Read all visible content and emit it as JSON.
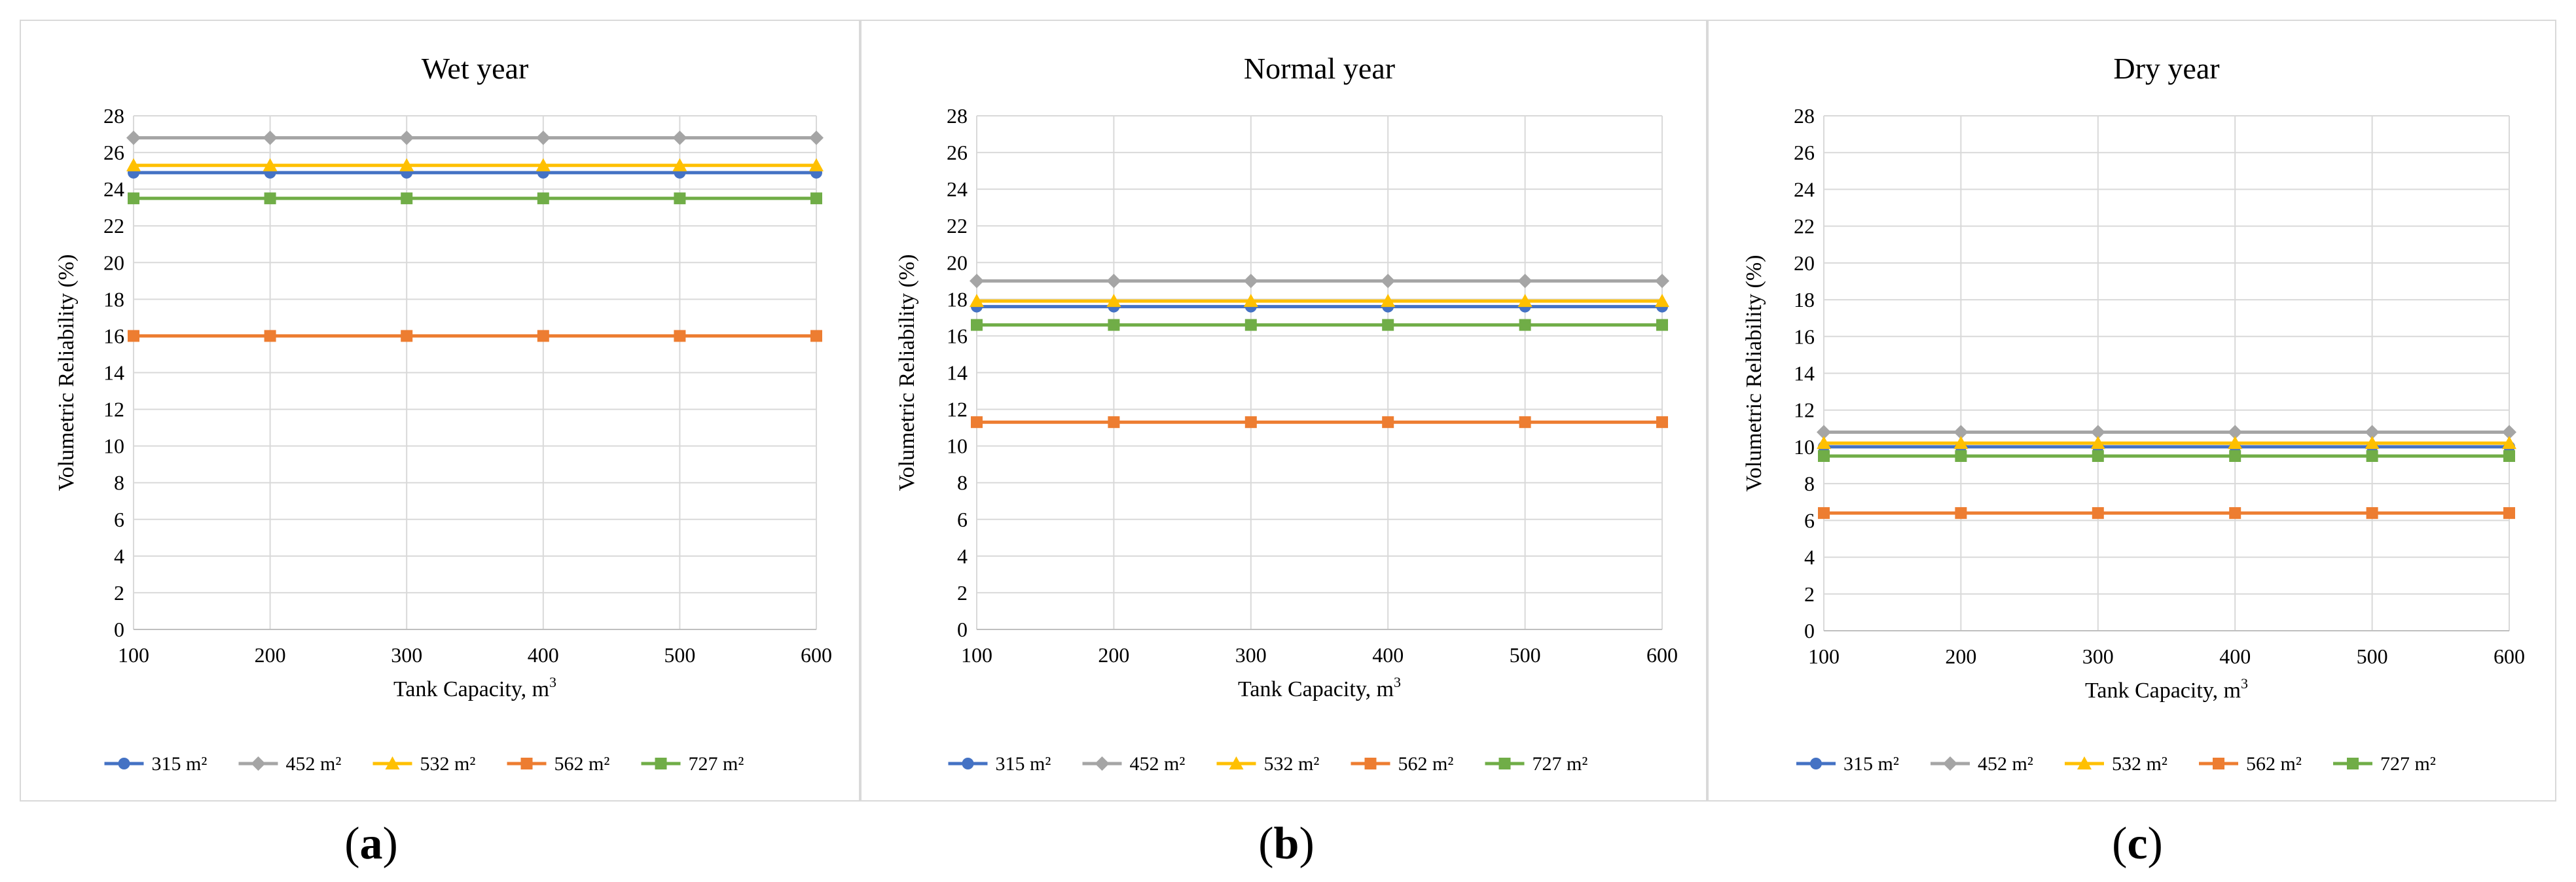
{
  "chart_data": [
    {
      "type": "line",
      "title": "Wet year",
      "xlabel": "Tank Capacity, m",
      "xlabel_sup": "3",
      "ylabel": "Volumetric  Reliability  (%)",
      "x": [
        100,
        200,
        300,
        400,
        500,
        600
      ],
      "ylim": [
        0,
        28
      ],
      "yticks": [
        0,
        2,
        4,
        6,
        8,
        10,
        12,
        14,
        16,
        18,
        20,
        22,
        24,
        26,
        28
      ],
      "grid": true,
      "legend": "bottom",
      "series": [
        {
          "name": "315 m²",
          "color": "#4472c4",
          "marker": "circle",
          "values": [
            24.9,
            24.9,
            24.9,
            24.9,
            24.9,
            24.9
          ]
        },
        {
          "name": "452 m²",
          "color": "#a5a5a5",
          "marker": "diamond",
          "values": [
            26.8,
            26.8,
            26.8,
            26.8,
            26.8,
            26.8
          ]
        },
        {
          "name": "532 m²",
          "color": "#ffc000",
          "marker": "triangle",
          "values": [
            25.3,
            25.3,
            25.3,
            25.3,
            25.3,
            25.3
          ]
        },
        {
          "name": "562 m²",
          "color": "#ed7d31",
          "marker": "square",
          "values": [
            16.0,
            16.0,
            16.0,
            16.0,
            16.0,
            16.0
          ]
        },
        {
          "name": "727 m²",
          "color": "#70ad47",
          "marker": "square",
          "values": [
            23.5,
            23.5,
            23.5,
            23.5,
            23.5,
            23.5
          ]
        }
      ]
    },
    {
      "type": "line",
      "title": "Normal year",
      "xlabel": "Tank Capacity, m",
      "xlabel_sup": "3",
      "ylabel": "Volumetric  Reliability  (%)",
      "x": [
        100,
        200,
        300,
        400,
        500,
        600
      ],
      "ylim": [
        0,
        28
      ],
      "yticks": [
        0,
        2,
        4,
        6,
        8,
        10,
        12,
        14,
        16,
        18,
        20,
        22,
        24,
        26,
        28
      ],
      "grid": true,
      "legend": "bottom",
      "series": [
        {
          "name": "315 m²",
          "color": "#4472c4",
          "marker": "circle",
          "values": [
            17.6,
            17.6,
            17.6,
            17.6,
            17.6,
            17.6
          ]
        },
        {
          "name": "452 m²",
          "color": "#a5a5a5",
          "marker": "diamond",
          "values": [
            19.0,
            19.0,
            19.0,
            19.0,
            19.0,
            19.0
          ]
        },
        {
          "name": "532 m²",
          "color": "#ffc000",
          "marker": "triangle",
          "values": [
            17.9,
            17.9,
            17.9,
            17.9,
            17.9,
            17.9
          ]
        },
        {
          "name": "562 m²",
          "color": "#ed7d31",
          "marker": "square",
          "values": [
            11.3,
            11.3,
            11.3,
            11.3,
            11.3,
            11.3
          ]
        },
        {
          "name": "727 m²",
          "color": "#70ad47",
          "marker": "square",
          "values": [
            16.6,
            16.6,
            16.6,
            16.6,
            16.6,
            16.6
          ]
        }
      ]
    },
    {
      "type": "line",
      "title": "Dry year",
      "xlabel": "Tank Capacity, m",
      "xlabel_sup": "3",
      "ylabel": "Volumetric  Reliability  (%)",
      "x": [
        100,
        200,
        300,
        400,
        500,
        600
      ],
      "ylim": [
        0,
        28
      ],
      "yticks": [
        0,
        2,
        4,
        6,
        8,
        10,
        12,
        14,
        16,
        18,
        20,
        22,
        24,
        26,
        28
      ],
      "grid": true,
      "legend": "bottom",
      "series": [
        {
          "name": "315 m²",
          "color": "#4472c4",
          "marker": "circle",
          "values": [
            10.0,
            10.0,
            10.0,
            10.0,
            10.0,
            10.0
          ]
        },
        {
          "name": "452 m²",
          "color": "#a5a5a5",
          "marker": "diamond",
          "values": [
            10.8,
            10.8,
            10.8,
            10.8,
            10.8,
            10.8
          ]
        },
        {
          "name": "532 m²",
          "color": "#ffc000",
          "marker": "triangle",
          "values": [
            10.2,
            10.2,
            10.2,
            10.2,
            10.2,
            10.2
          ]
        },
        {
          "name": "562 m²",
          "color": "#ed7d31",
          "marker": "square",
          "values": [
            6.4,
            6.4,
            6.4,
            6.4,
            6.4,
            6.4
          ]
        },
        {
          "name": "727 m²",
          "color": "#70ad47",
          "marker": "square",
          "values": [
            9.5,
            9.5,
            9.5,
            9.5,
            9.5,
            9.5
          ]
        }
      ]
    }
  ],
  "panel_labels": [
    "a",
    "b",
    "c"
  ]
}
